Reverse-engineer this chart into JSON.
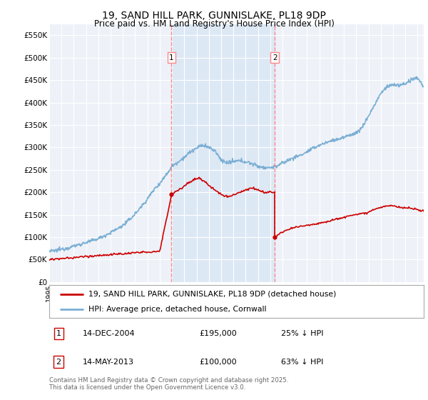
{
  "title": "19, SAND HILL PARK, GUNNISLAKE, PL18 9DP",
  "subtitle": "Price paid vs. HM Land Registry's House Price Index (HPI)",
  "ylabel_ticks": [
    "£0",
    "£50K",
    "£100K",
    "£150K",
    "£200K",
    "£250K",
    "£300K",
    "£350K",
    "£400K",
    "£450K",
    "£500K",
    "£550K"
  ],
  "ytick_values": [
    0,
    50000,
    100000,
    150000,
    200000,
    250000,
    300000,
    350000,
    400000,
    450000,
    500000,
    550000
  ],
  "ylim": [
    0,
    575000
  ],
  "xlim_start": 1995.0,
  "xlim_end": 2025.5,
  "sale1_date": 2004.96,
  "sale1_price": 195000,
  "sale1_label": "1",
  "sale1_hpi_diff": "25% ↓ HPI",
  "sale1_date_str": "14-DEC-2004",
  "sale2_date": 2013.37,
  "sale2_price": 100000,
  "sale2_label": "2",
  "sale2_hpi_diff": "63% ↓ HPI",
  "sale2_date_str": "14-MAY-2013",
  "legend_label1": "19, SAND HILL PARK, GUNNISLAKE, PL18 9DP (detached house)",
  "legend_label2": "HPI: Average price, detached house, Cornwall",
  "footer": "Contains HM Land Registry data © Crown copyright and database right 2025.\nThis data is licensed under the Open Government Licence v3.0.",
  "hpi_color": "#7bafd4",
  "price_color": "#cc0000",
  "sale_line_color": "#ff8888",
  "background_color": "#ffffff",
  "plot_bg_color": "#eef2f8",
  "span_color": "#dde8f5",
  "grid_color": "#ffffff"
}
